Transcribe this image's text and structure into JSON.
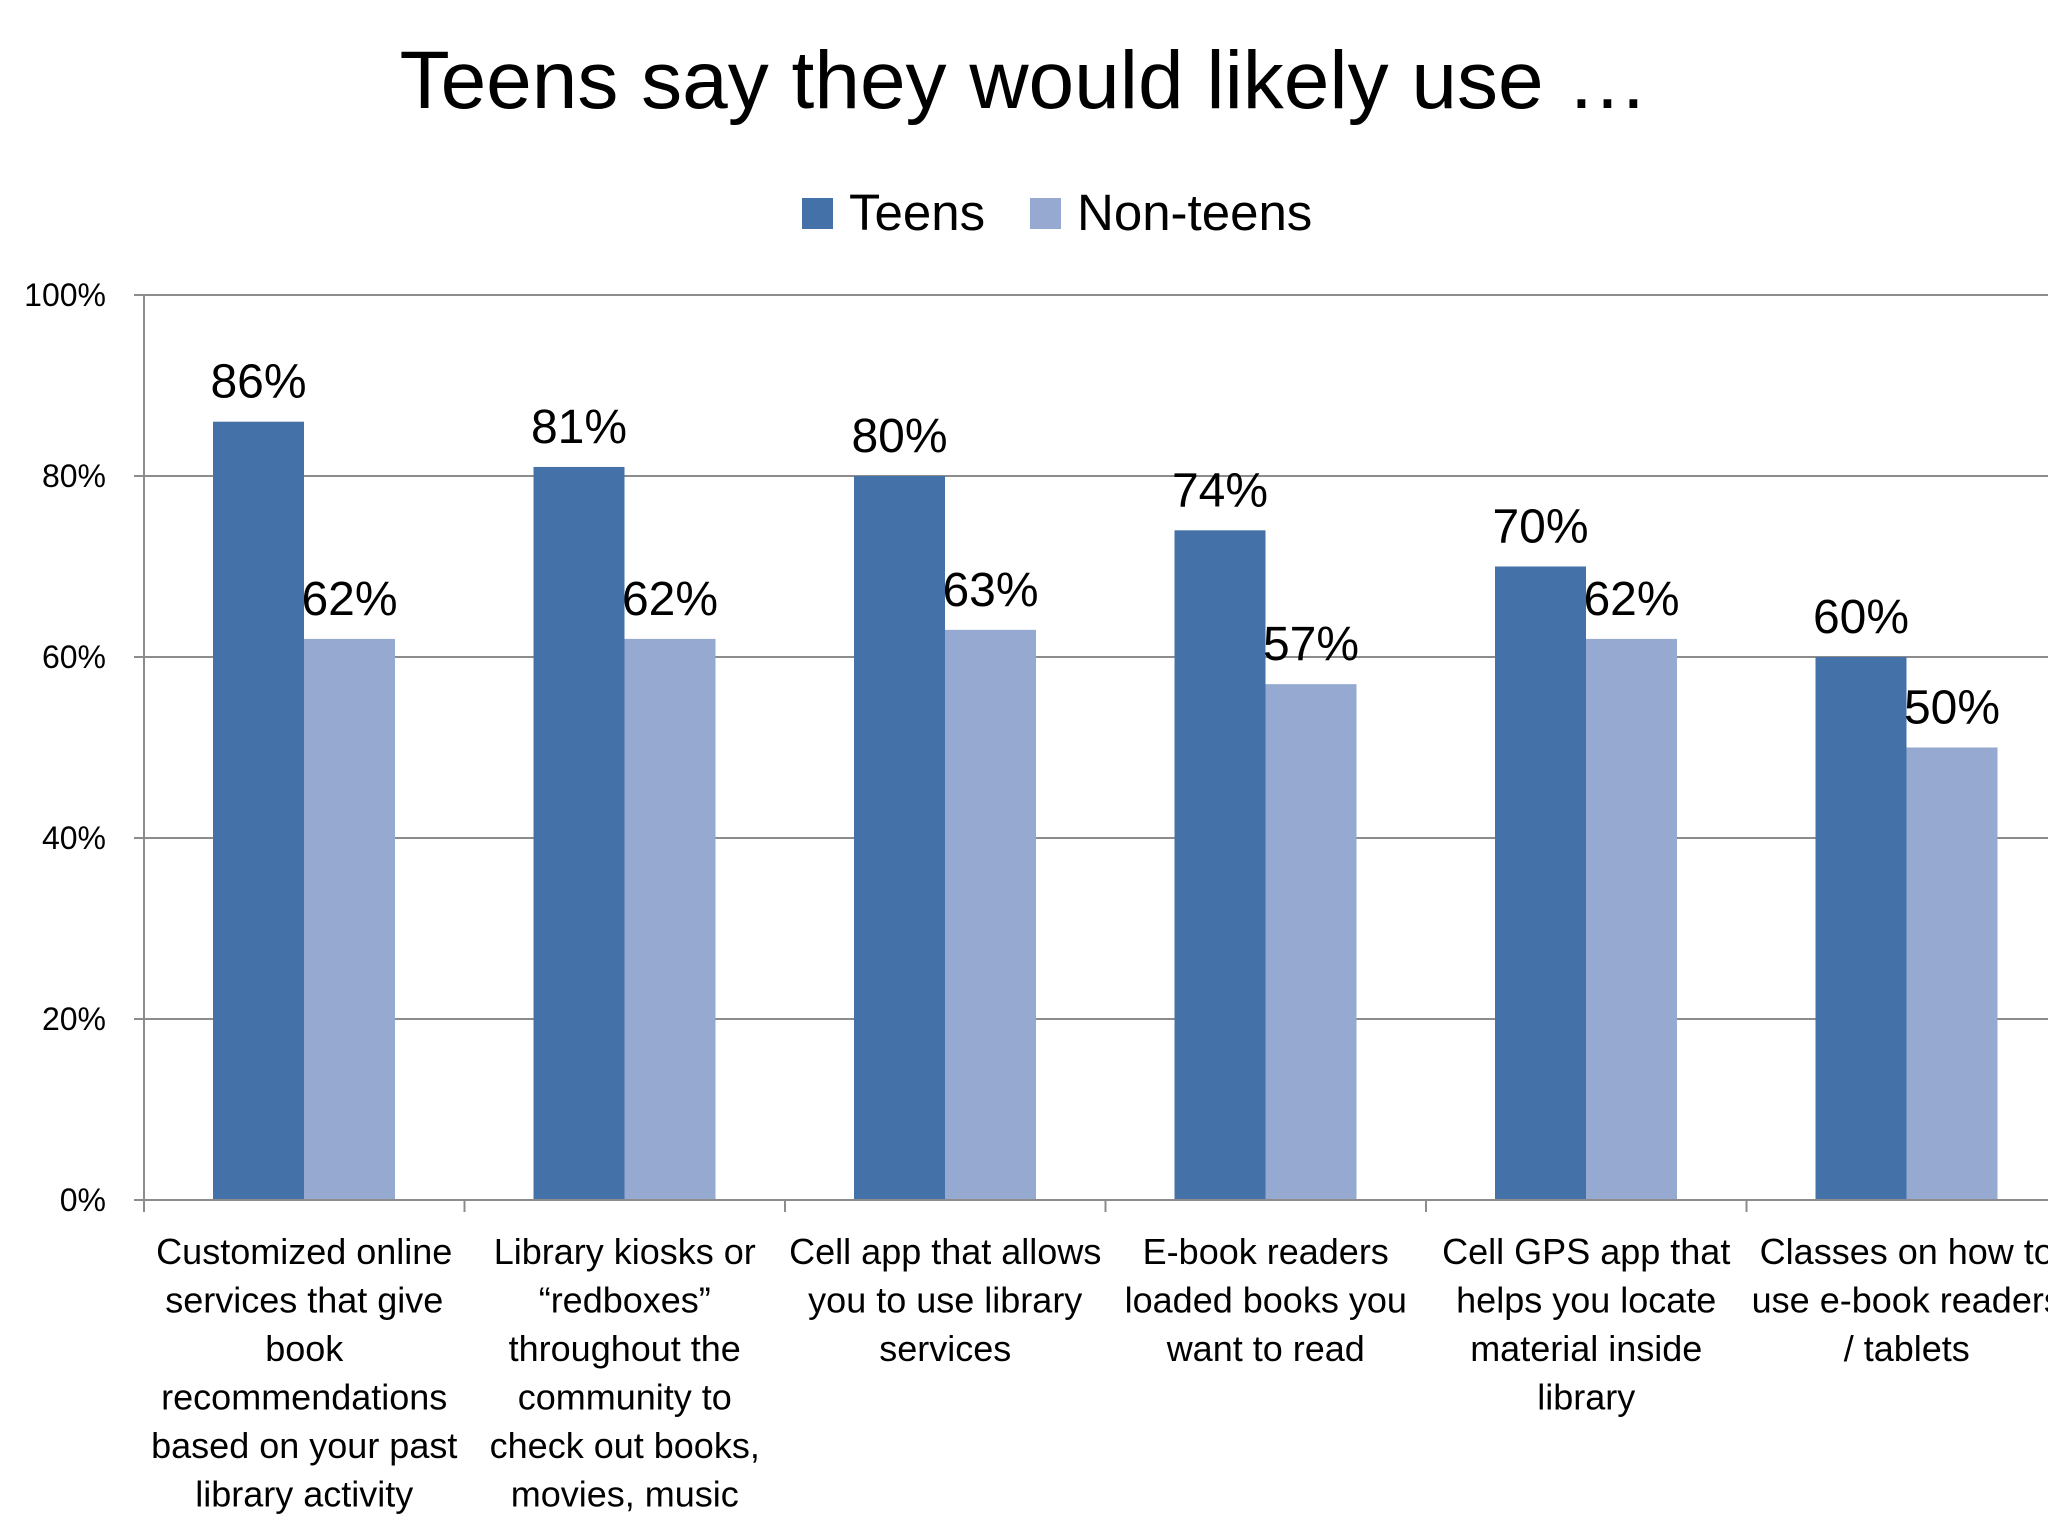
{
  "chart_data": {
    "type": "bar",
    "title": "Teens say they would likely use …",
    "categories": [
      [
        "Customized online",
        "services that give",
        "book",
        "recommendations",
        "based on your past",
        "library activity"
      ],
      [
        "Library kiosks or",
        "“redboxes”",
        "throughout the",
        "community to",
        "check out books,",
        "movies, music"
      ],
      [
        "Cell app that allows",
        "you to  use library",
        "services"
      ],
      [
        "E-book readers",
        "loaded books you",
        "want to read"
      ],
      [
        "Cell GPS app that",
        "helps you locate",
        "material inside",
        "library"
      ],
      [
        "Classes on how to",
        "use e-book readers",
        "/ tablets"
      ]
    ],
    "series": [
      {
        "name": "Teens",
        "color": "#4472A8",
        "values": [
          86,
          81,
          80,
          74,
          70,
          60
        ],
        "labels": [
          "86%",
          "81%",
          "80%",
          "74%",
          "70%",
          "60%"
        ]
      },
      {
        "name": "Non-teens",
        "color": "#95A9D1",
        "values": [
          62,
          62,
          63,
          57,
          62,
          50
        ],
        "labels": [
          "62%",
          "62%",
          "63%",
          "57%",
          "62%",
          "50%"
        ]
      }
    ],
    "yticks": [
      "0%",
      "20%",
      "40%",
      "60%",
      "80%",
      "100%"
    ],
    "ylim": [
      0,
      100
    ],
    "grid": true,
    "legend_position": "top"
  }
}
